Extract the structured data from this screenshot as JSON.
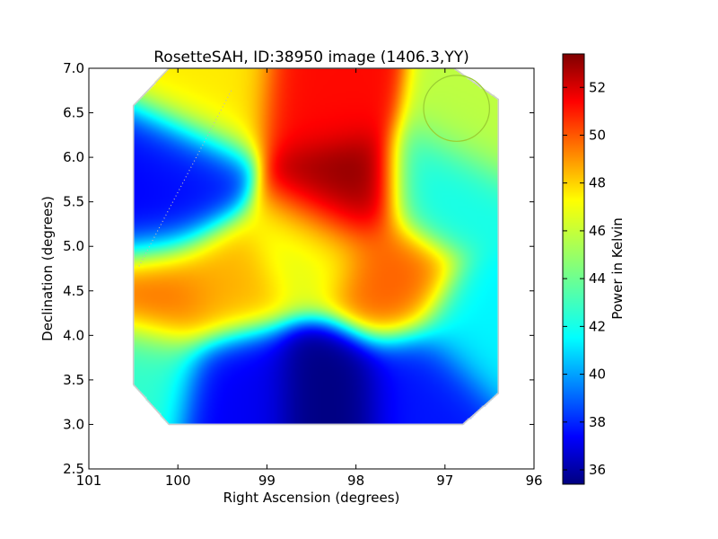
{
  "chart_data": {
    "type": "heatmap",
    "title": "RosetteSAH, ID:38950 image (1406.3,YY)",
    "xlabel": "Right Ascension (degrees)",
    "ylabel": "Declination (degrees)",
    "xlim": [
      101,
      96
    ],
    "ylim": [
      2.5,
      7.0
    ],
    "x_ticks": [
      "101",
      "100",
      "99",
      "98",
      "97",
      "96"
    ],
    "y_ticks": [
      "2.5",
      "3.0",
      "3.5",
      "4.0",
      "4.5",
      "5.0",
      "5.5",
      "6.0",
      "6.5",
      "7.0"
    ],
    "colorbar": {
      "label": "Power in Kelvin",
      "range": [
        35.4,
        53.4
      ],
      "ticks": [
        "36",
        "38",
        "40",
        "42",
        "44",
        "46",
        "48",
        "50",
        "52"
      ],
      "colormap": "jet"
    },
    "footprint_polygon_ra_dec": [
      [
        100.1,
        7.0
      ],
      [
        96.9,
        7.0
      ],
      [
        96.4,
        6.65
      ],
      [
        96.4,
        3.35
      ],
      [
        96.8,
        3.0
      ],
      [
        100.1,
        3.0
      ],
      [
        100.5,
        3.45
      ],
      [
        100.5,
        6.58
      ]
    ],
    "field_values_ra_dec_kelvin": [
      {
        "ra": 98.2,
        "dec": 5.6,
        "value": 53.4
      },
      {
        "ra": 98.4,
        "dec": 6.6,
        "value": 51.0
      },
      {
        "ra": 99.6,
        "dec": 6.7,
        "value": 47.0
      },
      {
        "ra": 100.0,
        "dec": 5.8,
        "value": 38.0
      },
      {
        "ra": 100.3,
        "dec": 5.4,
        "value": 37.5
      },
      {
        "ra": 100.2,
        "dec": 4.5,
        "value": 49.5
      },
      {
        "ra": 99.5,
        "dec": 4.6,
        "value": 48.0
      },
      {
        "ra": 98.5,
        "dec": 5.0,
        "value": 46.0
      },
      {
        "ra": 97.6,
        "dec": 4.6,
        "value": 49.5
      },
      {
        "ra": 97.0,
        "dec": 5.6,
        "value": 42.5
      },
      {
        "ra": 96.6,
        "dec": 6.4,
        "value": 45.5
      },
      {
        "ra": 98.3,
        "dec": 3.4,
        "value": 35.4
      },
      {
        "ra": 99.3,
        "dec": 3.4,
        "value": 37.5
      },
      {
        "ra": 97.3,
        "dec": 3.4,
        "value": 38.0
      },
      {
        "ra": 100.4,
        "dec": 3.6,
        "value": 43.0
      },
      {
        "ra": 96.6,
        "dec": 4.1,
        "value": 42.0
      }
    ],
    "beam_circle": {
      "ra": 96.87,
      "dec": 6.55,
      "radius_deg": 0.37,
      "color": "#9acd32"
    },
    "dotted_track": {
      "from": [
        99.4,
        6.75
      ],
      "to": [
        100.45,
        4.75
      ],
      "color": "#bbbbbb"
    },
    "grid": false
  }
}
